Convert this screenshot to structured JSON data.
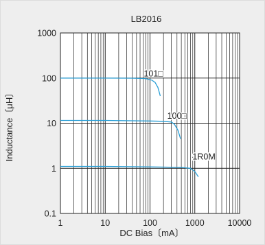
{
  "chart_data": {
    "type": "line",
    "title": "LB2016",
    "xlabel": "DC Bias〔mA〕",
    "ylabel": "Inductance〔μH〕",
    "xscale": "log",
    "yscale": "log",
    "xlim": [
      1,
      10000
    ],
    "ylim": [
      0.1,
      1000
    ],
    "grid": true,
    "x_ticks": [
      1,
      10,
      100,
      1000,
      10000
    ],
    "x_tick_labels": [
      "1",
      "10",
      "100",
      "1000",
      "10000"
    ],
    "y_ticks": [
      0.1,
      1,
      10,
      100,
      1000
    ],
    "y_tick_labels": [
      "0.1",
      "1",
      "10",
      "100",
      "1000"
    ],
    "series": [
      {
        "name": "101□",
        "color": "#2a9fd6",
        "x": [
          1,
          10,
          40,
          80,
          110,
          130,
          150,
          170
        ],
        "y": [
          100,
          100,
          99,
          97,
          90,
          80,
          62,
          40
        ]
      },
      {
        "name": "100□",
        "color": "#2a9fd6",
        "x": [
          1,
          10,
          100,
          200,
          300,
          350,
          420,
          480
        ],
        "y": [
          11.5,
          11.5,
          11.2,
          11,
          10.6,
          9.5,
          7,
          4.5
        ]
      },
      {
        "name": "1R0M",
        "color": "#2a9fd6",
        "x": [
          1,
          10,
          100,
          500,
          800,
          1000,
          1200
        ],
        "y": [
          1.1,
          1.1,
          1.08,
          1.05,
          1.0,
          0.85,
          0.65
        ]
      }
    ]
  }
}
